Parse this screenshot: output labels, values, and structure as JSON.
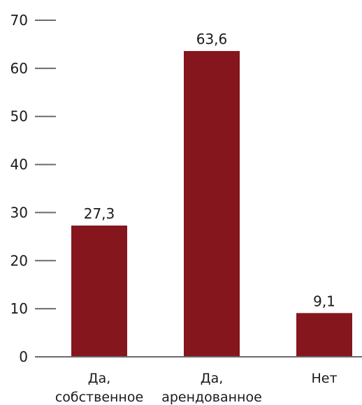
{
  "chart_data": {
    "type": "bar",
    "title": "",
    "xlabel": "",
    "ylabel": "",
    "ylim": [
      0,
      70
    ],
    "yticks": [
      0,
      10,
      20,
      30,
      40,
      50,
      60,
      70
    ],
    "categories": [
      {
        "lines": [
          "Да,",
          "собственное"
        ],
        "value": 27.3,
        "label": "27,3"
      },
      {
        "lines": [
          "Да,",
          "арендованное"
        ],
        "value": 63.6,
        "label": "63,6"
      },
      {
        "lines": [
          "Нет"
        ],
        "value": 9.1,
        "label": "9,1"
      }
    ],
    "colors": {
      "bar": "#85161E",
      "axis": "#6b6b6b",
      "text": "#1a1a1a"
    },
    "grid": false,
    "legend": "none"
  }
}
